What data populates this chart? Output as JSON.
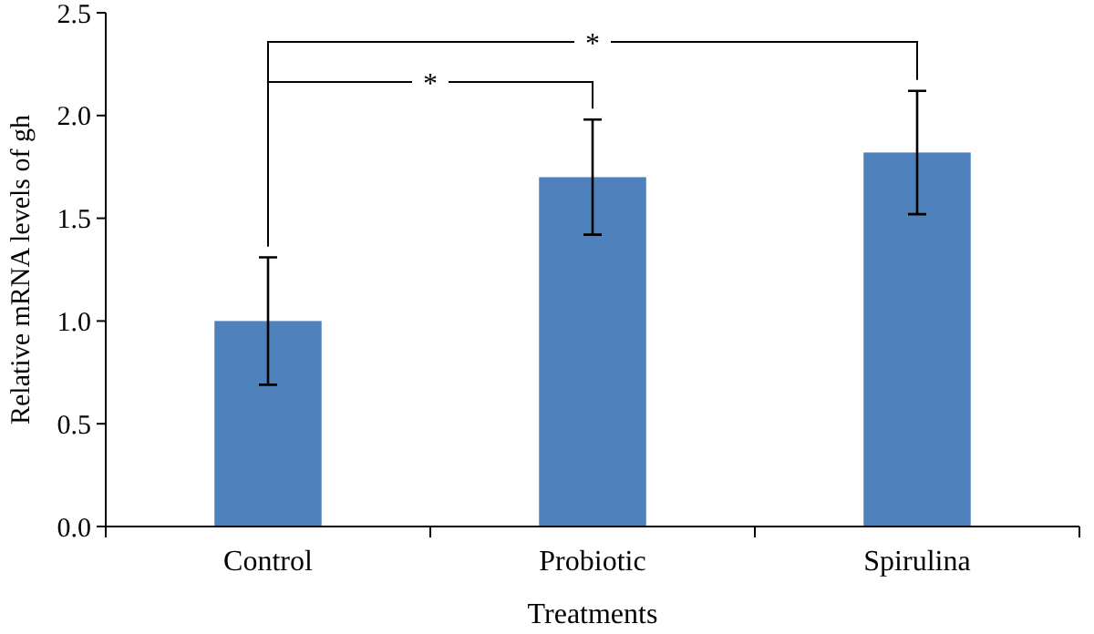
{
  "chart_data": {
    "type": "bar",
    "xlabel": "Treatments",
    "ylabel": "Relative mRNA levels of gh",
    "categories": [
      "Control",
      "Probiotic",
      "Spirulina"
    ],
    "values": [
      1.0,
      1.7,
      1.82
    ],
    "color": "#4f81bd",
    "errors": [
      0.31,
      0.28,
      0.3
    ],
    "ylim": [
      0,
      2.5
    ],
    "yticks": [
      {
        "value": 0,
        "label": "0.0"
      },
      {
        "value": 0.5,
        "label": "0.5"
      },
      {
        "value": 1,
        "label": "1.0"
      },
      {
        "value": 1.5,
        "label": "1.5"
      },
      {
        "value": 2,
        "label": "2.0"
      },
      {
        "value": 2.5,
        "label": "2.5"
      }
    ],
    "grid": false,
    "annotations": [
      "*",
      "*"
    ]
  }
}
